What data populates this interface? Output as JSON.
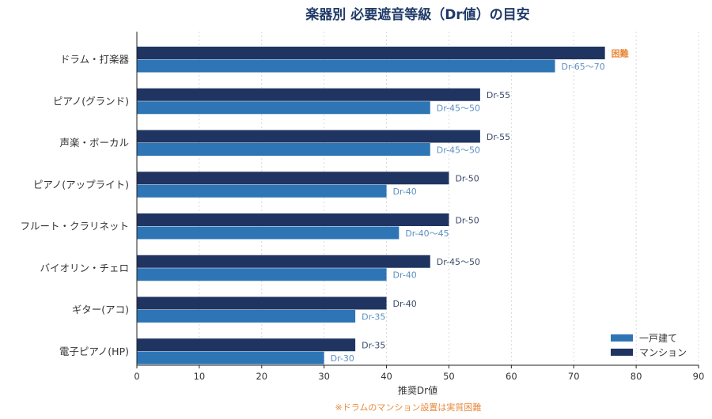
{
  "chart_data": {
    "type": "bar",
    "orientation": "horizontal",
    "title": "楽器別 必要遮音等級（Dr値）の目安",
    "xlabel": "推奨Dr値",
    "xlim": [
      0,
      90
    ],
    "xticks": [
      0,
      10,
      20,
      30,
      40,
      50,
      60,
      70,
      80,
      90
    ],
    "grid": "vertical-dotted",
    "legend_position": "bottom-right",
    "categories": [
      "ドラム・打楽器",
      "ピアノ(グランド)",
      "声楽・ボーカル",
      "ピアノ(アップライト)",
      "フルート・クラリネット",
      "バイオリン・チェロ",
      "ギター(アコ)",
      "電子ピアノ(HP)"
    ],
    "series": [
      {
        "name": "マンション",
        "color": "#1f3461",
        "label_color": "#3a4a6a",
        "values": [
          75,
          55,
          55,
          50,
          50,
          47,
          40,
          35
        ],
        "labels": [
          "困難",
          "Dr-55",
          "Dr-55",
          "Dr-50",
          "Dr-50",
          "Dr-45〜50",
          "Dr-40",
          "Dr-35"
        ],
        "highlight_label_index": 0,
        "highlight_color": "#e8893a"
      },
      {
        "name": "一戸建て",
        "color": "#2e75b6",
        "label_color": "#5b8fc4",
        "values": [
          67,
          47,
          47,
          40,
          42,
          40,
          35,
          30
        ],
        "labels": [
          "Dr-65〜70",
          "Dr-45〜50",
          "Dr-45〜50",
          "Dr-40",
          "Dr-40〜45",
          "Dr-40",
          "Dr-35",
          "Dr-30"
        ]
      }
    ],
    "footnote": "※ドラムのマンション設置は実質困難"
  }
}
